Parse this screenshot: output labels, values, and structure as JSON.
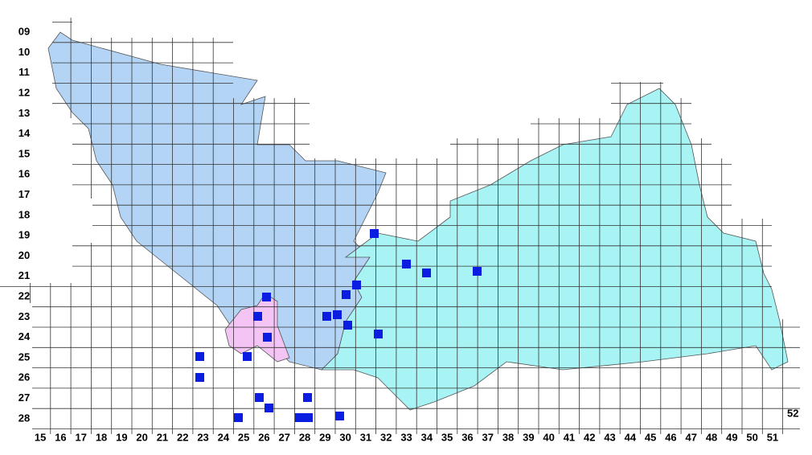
{
  "map": {
    "row_labels": [
      "09",
      "10",
      "11",
      "12",
      "13",
      "14",
      "15",
      "16",
      "17",
      "18",
      "19",
      "20",
      "21",
      "22",
      "23",
      "24",
      "25",
      "26",
      "27",
      "28"
    ],
    "column_labels": [
      "15",
      "16",
      "17",
      "18",
      "19",
      "20",
      "21",
      "22",
      "23",
      "24",
      "25",
      "26",
      "27",
      "28",
      "29",
      "30",
      "31",
      "32",
      "33",
      "34",
      "35",
      "36",
      "37",
      "38",
      "39",
      "40",
      "41",
      "42",
      "43",
      "44",
      "45",
      "46",
      "47",
      "48",
      "49",
      "50",
      "51",
      "52"
    ]
  }
}
